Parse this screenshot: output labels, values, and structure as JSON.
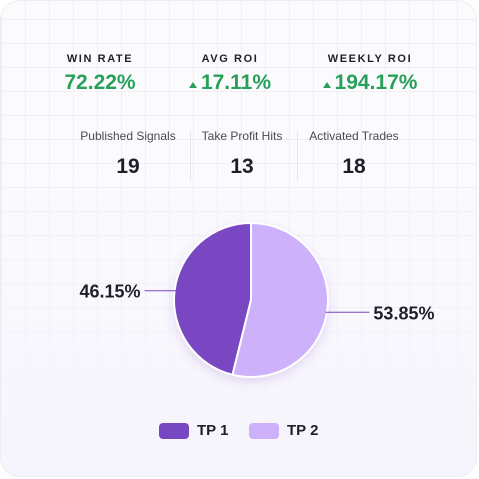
{
  "kpis": {
    "win_rate": {
      "label": "WIN RATE",
      "value": "72.22%"
    },
    "avg_roi": {
      "label": "AVG ROI",
      "value": "17.11%"
    },
    "weekly_roi": {
      "label": "WEEKLY ROI",
      "value": "194.17%"
    }
  },
  "stats": {
    "published": {
      "label": "Published Signals",
      "value": "19"
    },
    "tp_hits": {
      "label": "Take Profit Hits",
      "value": "13"
    },
    "activated": {
      "label": "Activated Trades",
      "value": "18"
    }
  },
  "colors": {
    "positive": "#27a05a",
    "tp1": "#7a47c2",
    "tp2": "#cdb1fb"
  },
  "chart_data": {
    "type": "pie",
    "slices": [
      {
        "name": "TP 1",
        "value": 46.15,
        "label": "46.15%",
        "color": "#7a47c2"
      },
      {
        "name": "TP 2",
        "value": 53.85,
        "label": "53.85%",
        "color": "#cdb1fb"
      }
    ],
    "legend_position": "bottom"
  }
}
